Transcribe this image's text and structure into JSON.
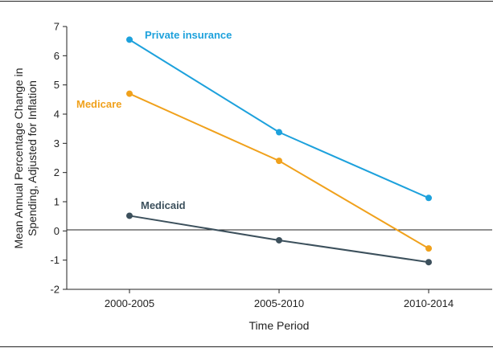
{
  "chart_data": {
    "type": "line",
    "title": "",
    "xlabel": "Time Period",
    "ylabel": [
      "Mean Annual Percentage Change in",
      "Spending, Adjusted for Inflation"
    ],
    "categories": [
      "2000-2005",
      "2005-2010",
      "2010-2014"
    ],
    "ylim": [
      -2,
      7
    ],
    "yticks": [
      -2,
      -1,
      0,
      1,
      2,
      3,
      4,
      5,
      6,
      7
    ],
    "grid": false,
    "legend": "inline labels",
    "series": [
      {
        "name": "Private insurance",
        "values": [
          6.55,
          3.38,
          1.13
        ],
        "color": "#1da1dc"
      },
      {
        "name": "Medicare",
        "values": [
          4.7,
          2.4,
          -0.6
        ],
        "color": "#f0a11c"
      },
      {
        "name": "Medicaid",
        "values": [
          0.52,
          -0.32,
          -1.07
        ],
        "color": "#3c505c"
      }
    ]
  }
}
